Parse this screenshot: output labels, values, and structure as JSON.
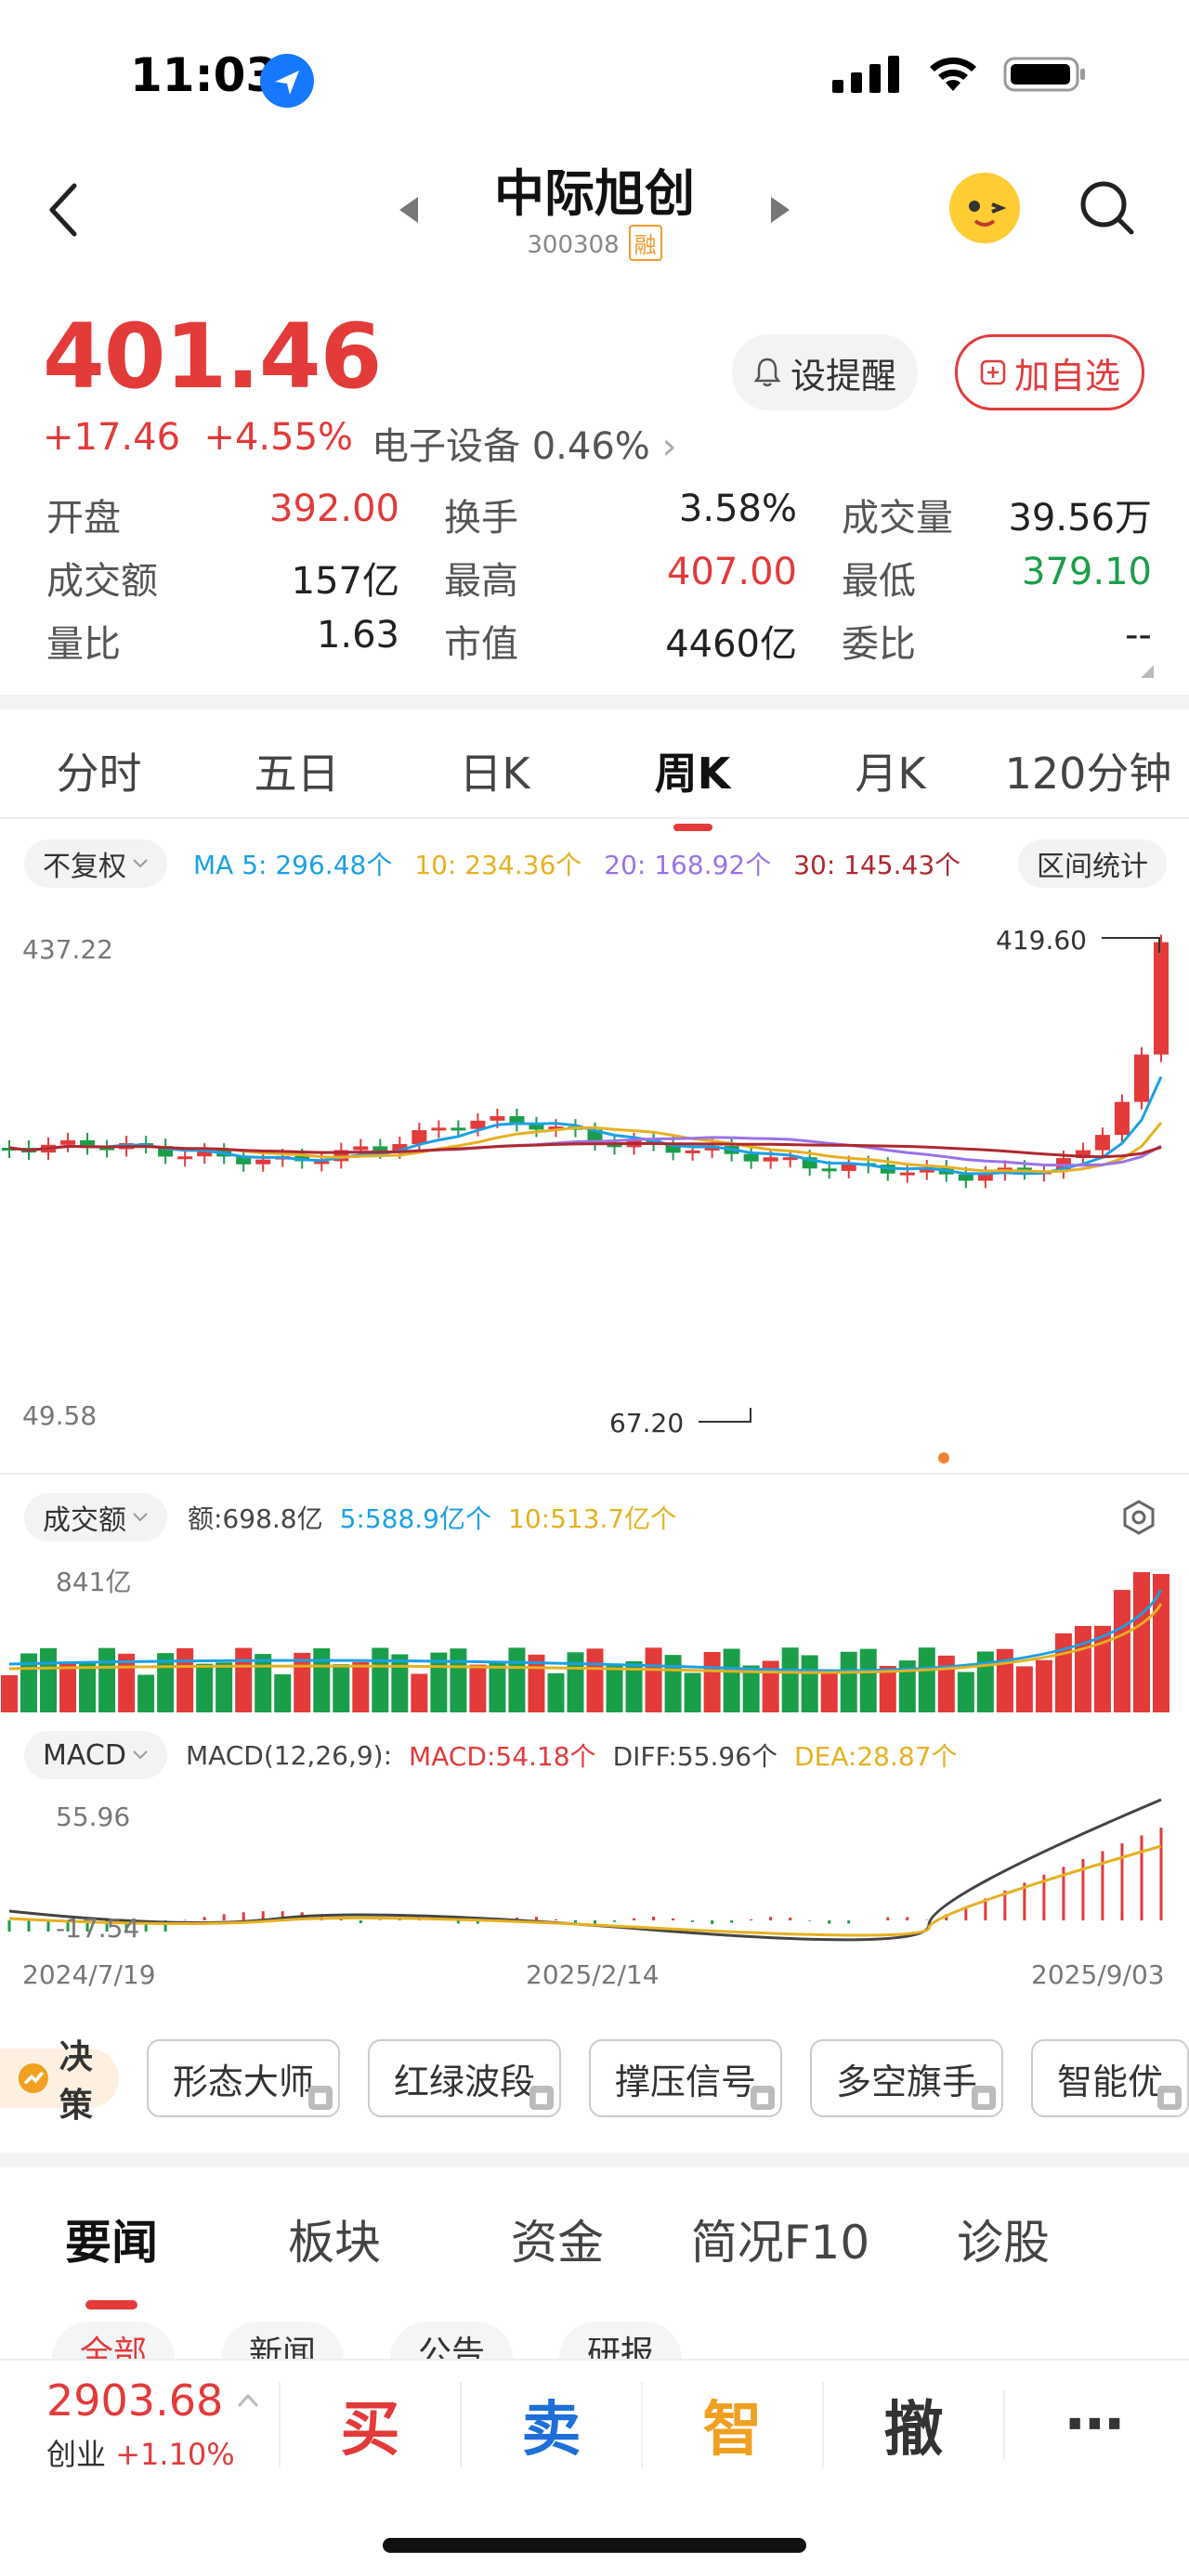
{
  "status": {
    "time": "11:03"
  },
  "stock": {
    "name": "中际旭创",
    "code": "300308",
    "badge": "融"
  },
  "price": {
    "last": "401.46",
    "change": "+17.46",
    "change_pct": "+4.55%",
    "sector": "电子设备 0.46%",
    "sector_arrow": "›"
  },
  "buttons": {
    "alert": "设提醒",
    "add": "加自选"
  },
  "stats": [
    [
      {
        "label": "开盘",
        "value": "392.00",
        "color": "#e33a3a"
      },
      {
        "label": "换手",
        "value": "3.58%",
        "color": "#222"
      },
      {
        "label": "成交量",
        "value": "39.56万",
        "color": "#222"
      }
    ],
    [
      {
        "label": "成交额",
        "value": "157亿",
        "color": "#222"
      },
      {
        "label": "最高",
        "value": "407.00",
        "color": "#e33a3a"
      },
      {
        "label": "最低",
        "value": "379.10",
        "color": "#1a9e4a"
      }
    ],
    [
      {
        "label": "量比",
        "value": "1.63",
        "color": "#222"
      },
      {
        "label": "市值",
        "value": "4460亿",
        "color": "#222"
      },
      {
        "label": "委比",
        "value": "--",
        "color": "#222"
      }
    ]
  ],
  "ktabs": [
    "分时",
    "五日",
    "日K",
    "周K",
    "月K",
    "120分钟"
  ],
  "ktab_active": "周K",
  "ma": {
    "adj": "不复权",
    "ma5": "MA 5: 296.48个",
    "ma10": "10: 234.36个",
    "ma20": "20: 168.92个",
    "ma30": "30: 145.43个",
    "range_btn": "区间统计",
    "colors": {
      "ma5": "#1aa0e6",
      "ma10": "#e6b020",
      "ma20": "#9b72e8",
      "ma30": "#b0282e"
    }
  },
  "kchart": {
    "top": "437.22",
    "bottom": "49.58",
    "high_mark": "419.60",
    "low_mark": "67.20"
  },
  "volume": {
    "selector": "成交额",
    "amount": "额:698.8亿",
    "ma5": "5:588.9亿个",
    "ma10": "10:513.7亿个",
    "max_label": "841亿"
  },
  "macd": {
    "selector": "MACD",
    "params": "MACD(12,26,9):",
    "macd": "MACD:54.18个",
    "diff": "DIFF:55.96个",
    "dea": "DEA:28.87个",
    "max_label": "55.96",
    "min_label": "-17.54"
  },
  "dates": [
    "2024/7/19",
    "2025/2/14",
    "2025/9/03"
  ],
  "strategy": {
    "label": "决策",
    "items": [
      "形态大师",
      "红绿波段",
      "撑压信号",
      "多空旗手",
      "智能优"
    ]
  },
  "news_tabs": [
    "要闻",
    "板块",
    "资金",
    "简况F10",
    "诊股"
  ],
  "news_subtabs": [
    "全部",
    "新闻",
    "公告",
    "研报"
  ],
  "index": {
    "value": "2903.68",
    "name": "创业",
    "change": "+1.10%"
  },
  "actions": {
    "buy": "买",
    "sell": "卖",
    "smart": "智",
    "cancel": "撤",
    "more": "⋯"
  }
}
